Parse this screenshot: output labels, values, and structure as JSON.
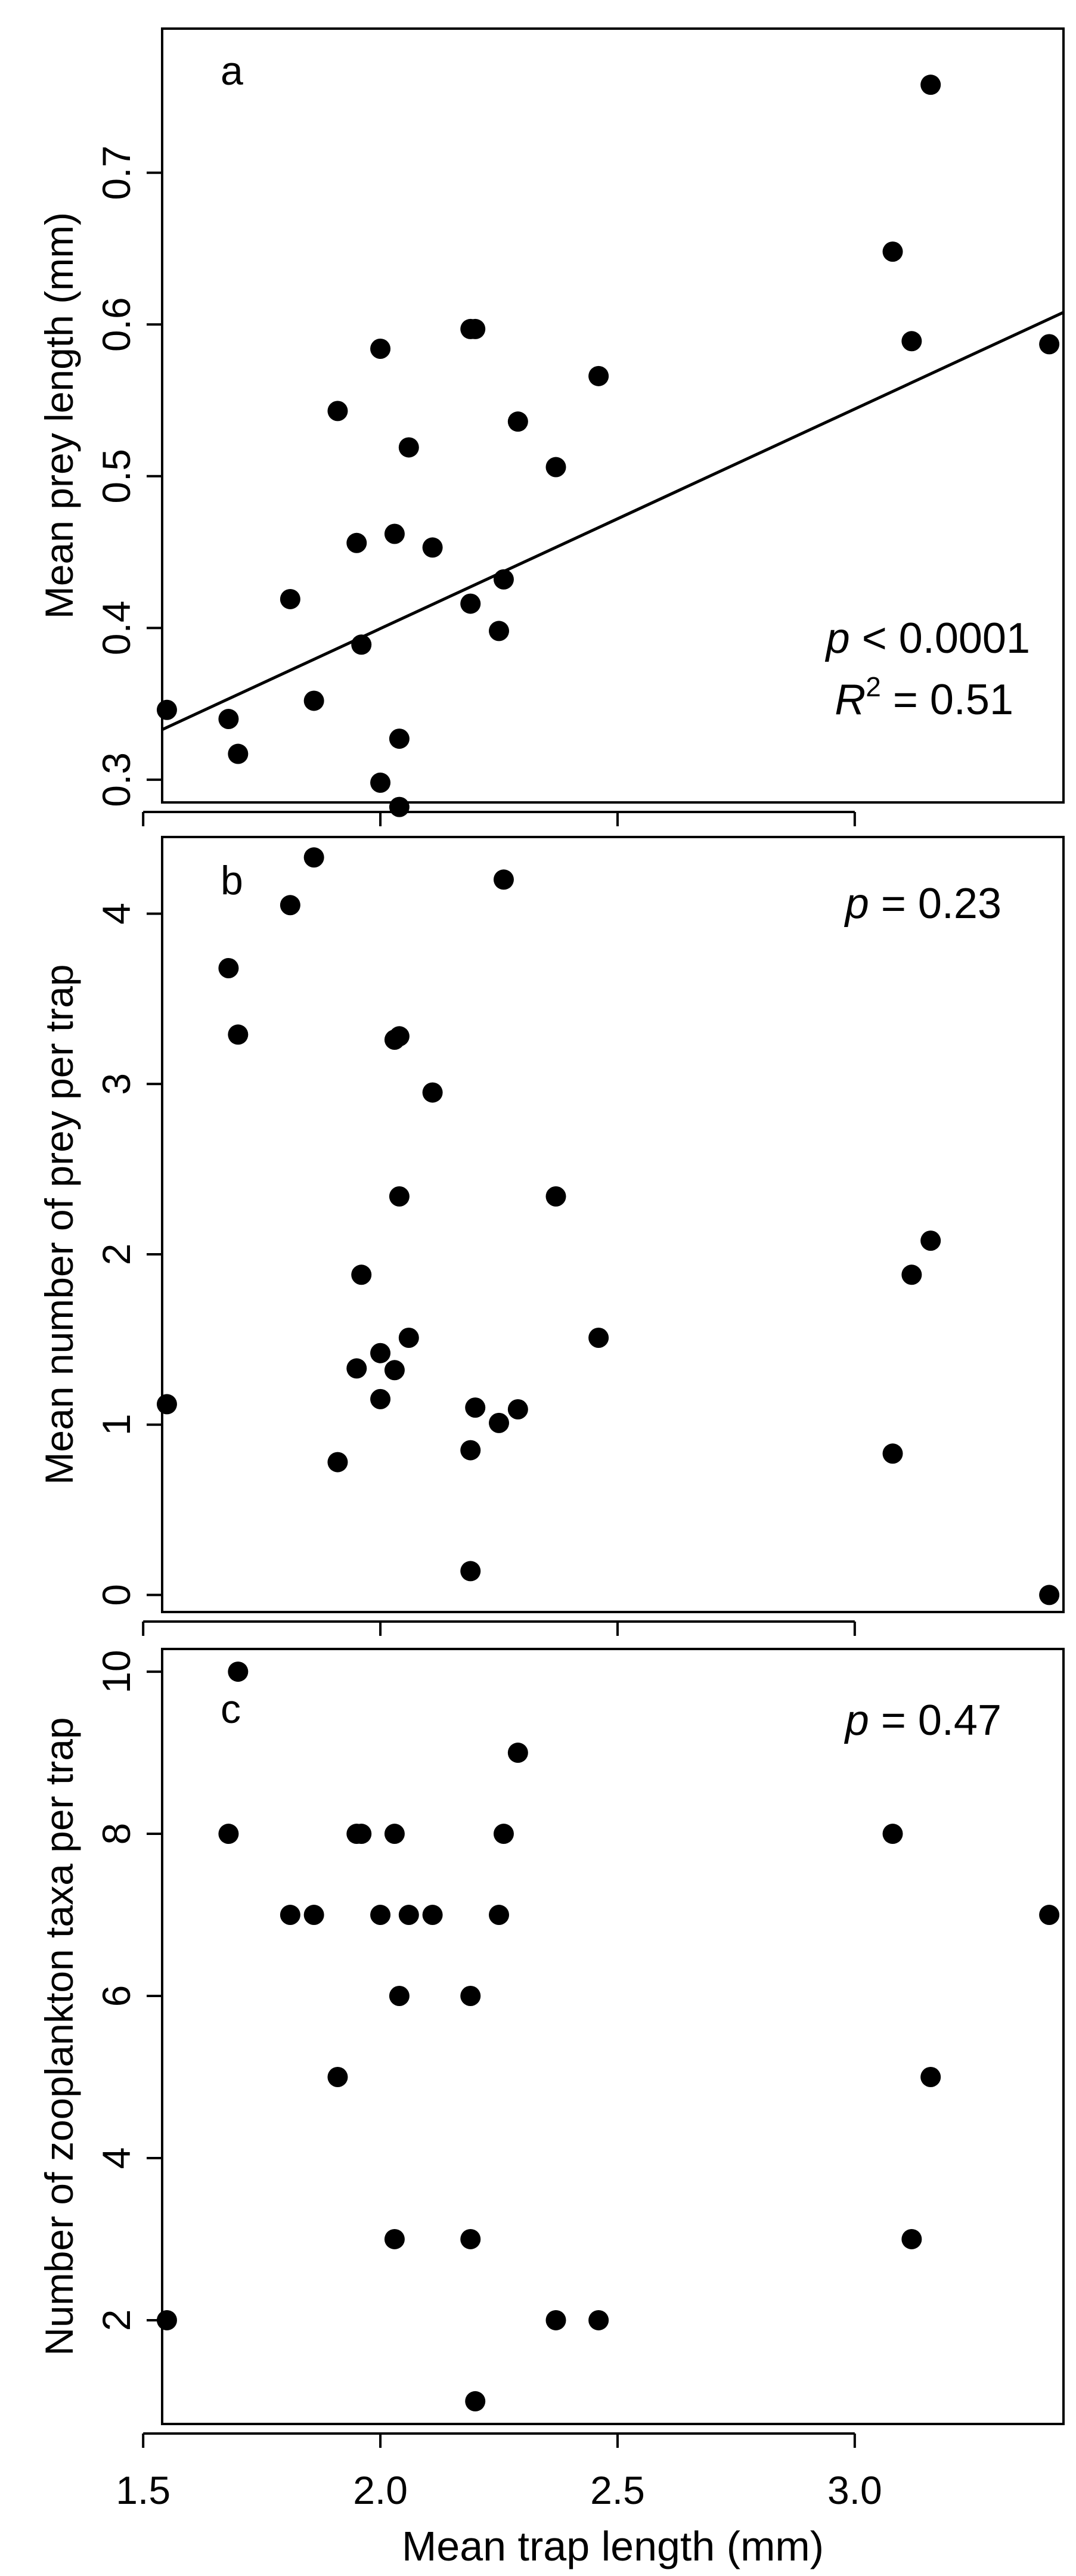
{
  "figure": {
    "x_axis_label": "Mean trap length (mm)",
    "x_tick_labels": [
      "1.5",
      "2.0",
      "2.5",
      "3.0"
    ],
    "x_ticks": [
      1.5,
      2.0,
      2.5,
      3.0
    ],
    "xlim": [
      1.54,
      3.44
    ]
  },
  "chart_data": [
    {
      "type": "scatter",
      "panel": "a",
      "ylabel": "Mean prey length (mm)",
      "ylim": [
        0.285,
        0.795
      ],
      "yticks": [
        0.3,
        0.4,
        0.5,
        0.6,
        0.7
      ],
      "ytick_labels": [
        "0.3",
        "0.4",
        "0.5",
        "0.6",
        "0.7"
      ],
      "x": [
        1.55,
        1.68,
        1.7,
        1.81,
        1.86,
        1.91,
        1.95,
        1.96,
        2.0,
        2.0,
        2.03,
        2.04,
        2.04,
        2.06,
        2.11,
        2.19,
        2.19,
        2.2,
        2.25,
        2.26,
        2.29,
        2.37,
        2.46,
        3.08,
        3.12,
        3.16,
        3.41
      ],
      "y": [
        0.346,
        0.34,
        0.317,
        0.419,
        0.352,
        0.543,
        0.456,
        0.389,
        0.584,
        0.298,
        0.462,
        0.282,
        0.327,
        0.519,
        0.453,
        0.597,
        0.416,
        0.597,
        0.398,
        0.432,
        0.536,
        0.506,
        0.566,
        0.648,
        0.589,
        0.758,
        0.587
      ],
      "fit_line": {
        "x": [
          1.54,
          3.44
        ],
        "y": [
          0.333,
          0.608
        ]
      },
      "annotations": {
        "p_italic": "p",
        "p_rest": " < 0.0001",
        "r2_italic": "R",
        "r2_sup": "2",
        "r2_rest": " = 0.51"
      }
    },
    {
      "type": "scatter",
      "panel": "b",
      "ylabel": "Mean number of prey per trap",
      "ylim": [
        -0.1,
        4.45
      ],
      "yticks": [
        0,
        1,
        2,
        3,
        4
      ],
      "ytick_labels": [
        "0",
        "1",
        "2",
        "3",
        "4"
      ],
      "x": [
        1.55,
        1.68,
        1.7,
        1.81,
        1.86,
        1.91,
        1.95,
        1.96,
        2.0,
        2.0,
        2.03,
        2.03,
        2.04,
        2.04,
        2.06,
        2.11,
        2.19,
        2.19,
        2.2,
        2.25,
        2.26,
        2.29,
        2.37,
        2.46,
        3.08,
        3.12,
        3.16,
        3.41
      ],
      "y": [
        1.12,
        3.68,
        3.29,
        4.05,
        4.33,
        0.78,
        1.33,
        1.88,
        1.42,
        1.15,
        3.26,
        1.32,
        3.28,
        2.34,
        1.51,
        2.95,
        0.85,
        0.14,
        1.1,
        1.01,
        4.2,
        1.09,
        2.34,
        1.51,
        0.83,
        1.88,
        2.08,
        0.0
      ],
      "annotations": {
        "p_italic": "p",
        "p_rest": " = 0.23"
      }
    },
    {
      "type": "scatter",
      "panel": "c",
      "ylabel": "Number of zooplankton taxa per trap",
      "ylim": [
        0.72,
        10.28
      ],
      "yticks": [
        2,
        4,
        6,
        8,
        10
      ],
      "ytick_labels": [
        "2",
        "4",
        "6",
        "8",
        "10"
      ],
      "x": [
        1.55,
        1.68,
        1.7,
        1.81,
        1.86,
        1.91,
        1.95,
        1.96,
        2.0,
        2.03,
        2.03,
        2.04,
        2.06,
        2.11,
        2.19,
        2.19,
        2.2,
        2.25,
        2.26,
        2.29,
        2.37,
        2.46,
        3.08,
        3.12,
        3.16,
        3.41
      ],
      "y": [
        2,
        8,
        10,
        7,
        7,
        5,
        8,
        8,
        7,
        8,
        3,
        6,
        7,
        7,
        6,
        3,
        1,
        7,
        8,
        9,
        2,
        2,
        8,
        3,
        5,
        7
      ],
      "annotations": {
        "p_italic": "p",
        "p_rest": " = 0.47"
      }
    }
  ]
}
